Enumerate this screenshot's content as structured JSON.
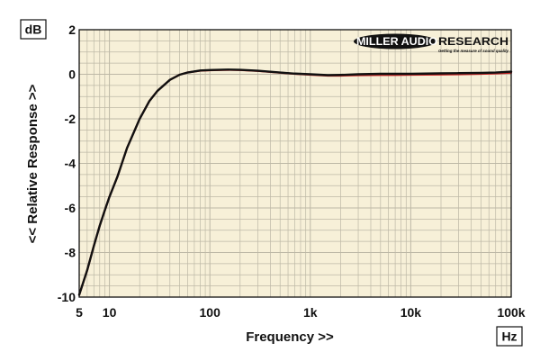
{
  "chart_data": {
    "type": "line",
    "ylabel": "<< Relative Response >>",
    "xlabel": "Frequency >>",
    "y_unit": "dB",
    "x_unit": "Hz",
    "x_scale": "log",
    "xlim": [
      5,
      100000
    ],
    "ylim": [
      -10,
      2
    ],
    "x_ticks": [
      {
        "value": 5,
        "label": "5"
      },
      {
        "value": 10,
        "label": "10"
      },
      {
        "value": 100,
        "label": "100"
      },
      {
        "value": 1000,
        "label": "1k"
      },
      {
        "value": 10000,
        "label": "10k"
      },
      {
        "value": 100000,
        "label": "100k"
      }
    ],
    "y_ticks": [
      {
        "value": 2,
        "label": "2"
      },
      {
        "value": 0,
        "label": "0"
      },
      {
        "value": -2,
        "label": "-2"
      },
      {
        "value": -4,
        "label": "-4"
      },
      {
        "value": -6,
        "label": "-6"
      },
      {
        "value": -8,
        "label": "-8"
      },
      {
        "value": -10,
        "label": "-10"
      }
    ],
    "grid": true,
    "colors": {
      "background": "#f7f0d8",
      "grid": "#bdb8a6",
      "series_black": "#111111",
      "series_red": "#cc1f1f"
    },
    "series": [
      {
        "color": "#111111",
        "x": [
          5,
          6,
          7,
          8,
          9,
          10,
          12,
          15,
          20,
          25,
          30,
          40,
          50,
          60,
          80,
          100,
          150,
          200,
          300,
          500,
          700,
          1000,
          1500,
          2000,
          3000,
          5000,
          7000,
          10000,
          20000,
          30000,
          50000,
          70000,
          100000
        ],
        "y": [
          -9.9,
          -8.8,
          -7.7,
          -6.8,
          -6.1,
          -5.5,
          -4.6,
          -3.3,
          -2.0,
          -1.2,
          -0.75,
          -0.25,
          -0.02,
          0.08,
          0.17,
          0.19,
          0.21,
          0.2,
          0.16,
          0.08,
          0.03,
          0.0,
          -0.04,
          -0.03,
          0.0,
          0.02,
          0.02,
          0.02,
          0.04,
          0.05,
          0.06,
          0.08,
          0.12
        ]
      },
      {
        "color": "#cc1f1f",
        "x": [
          5,
          6,
          7,
          8,
          9,
          10,
          12,
          15,
          20,
          25,
          30,
          40,
          50,
          60,
          80,
          100,
          150,
          200,
          300,
          500,
          700,
          1000,
          1500,
          2000,
          3000,
          5000,
          7000,
          10000,
          20000,
          30000,
          50000,
          70000,
          100000
        ],
        "y": [
          -9.9,
          -8.8,
          -7.7,
          -6.8,
          -6.1,
          -5.5,
          -4.6,
          -3.3,
          -2.0,
          -1.2,
          -0.75,
          -0.25,
          -0.02,
          0.08,
          0.16,
          0.18,
          0.2,
          0.19,
          0.15,
          0.07,
          0.02,
          -0.02,
          -0.06,
          -0.06,
          -0.04,
          -0.03,
          -0.03,
          -0.02,
          -0.01,
          0.0,
          0.02,
          0.04,
          0.07
        ]
      }
    ]
  },
  "logo": {
    "main_text": "MILLER AUDIO RESEARCH",
    "tagline": "Getting the measure of sound quality"
  }
}
